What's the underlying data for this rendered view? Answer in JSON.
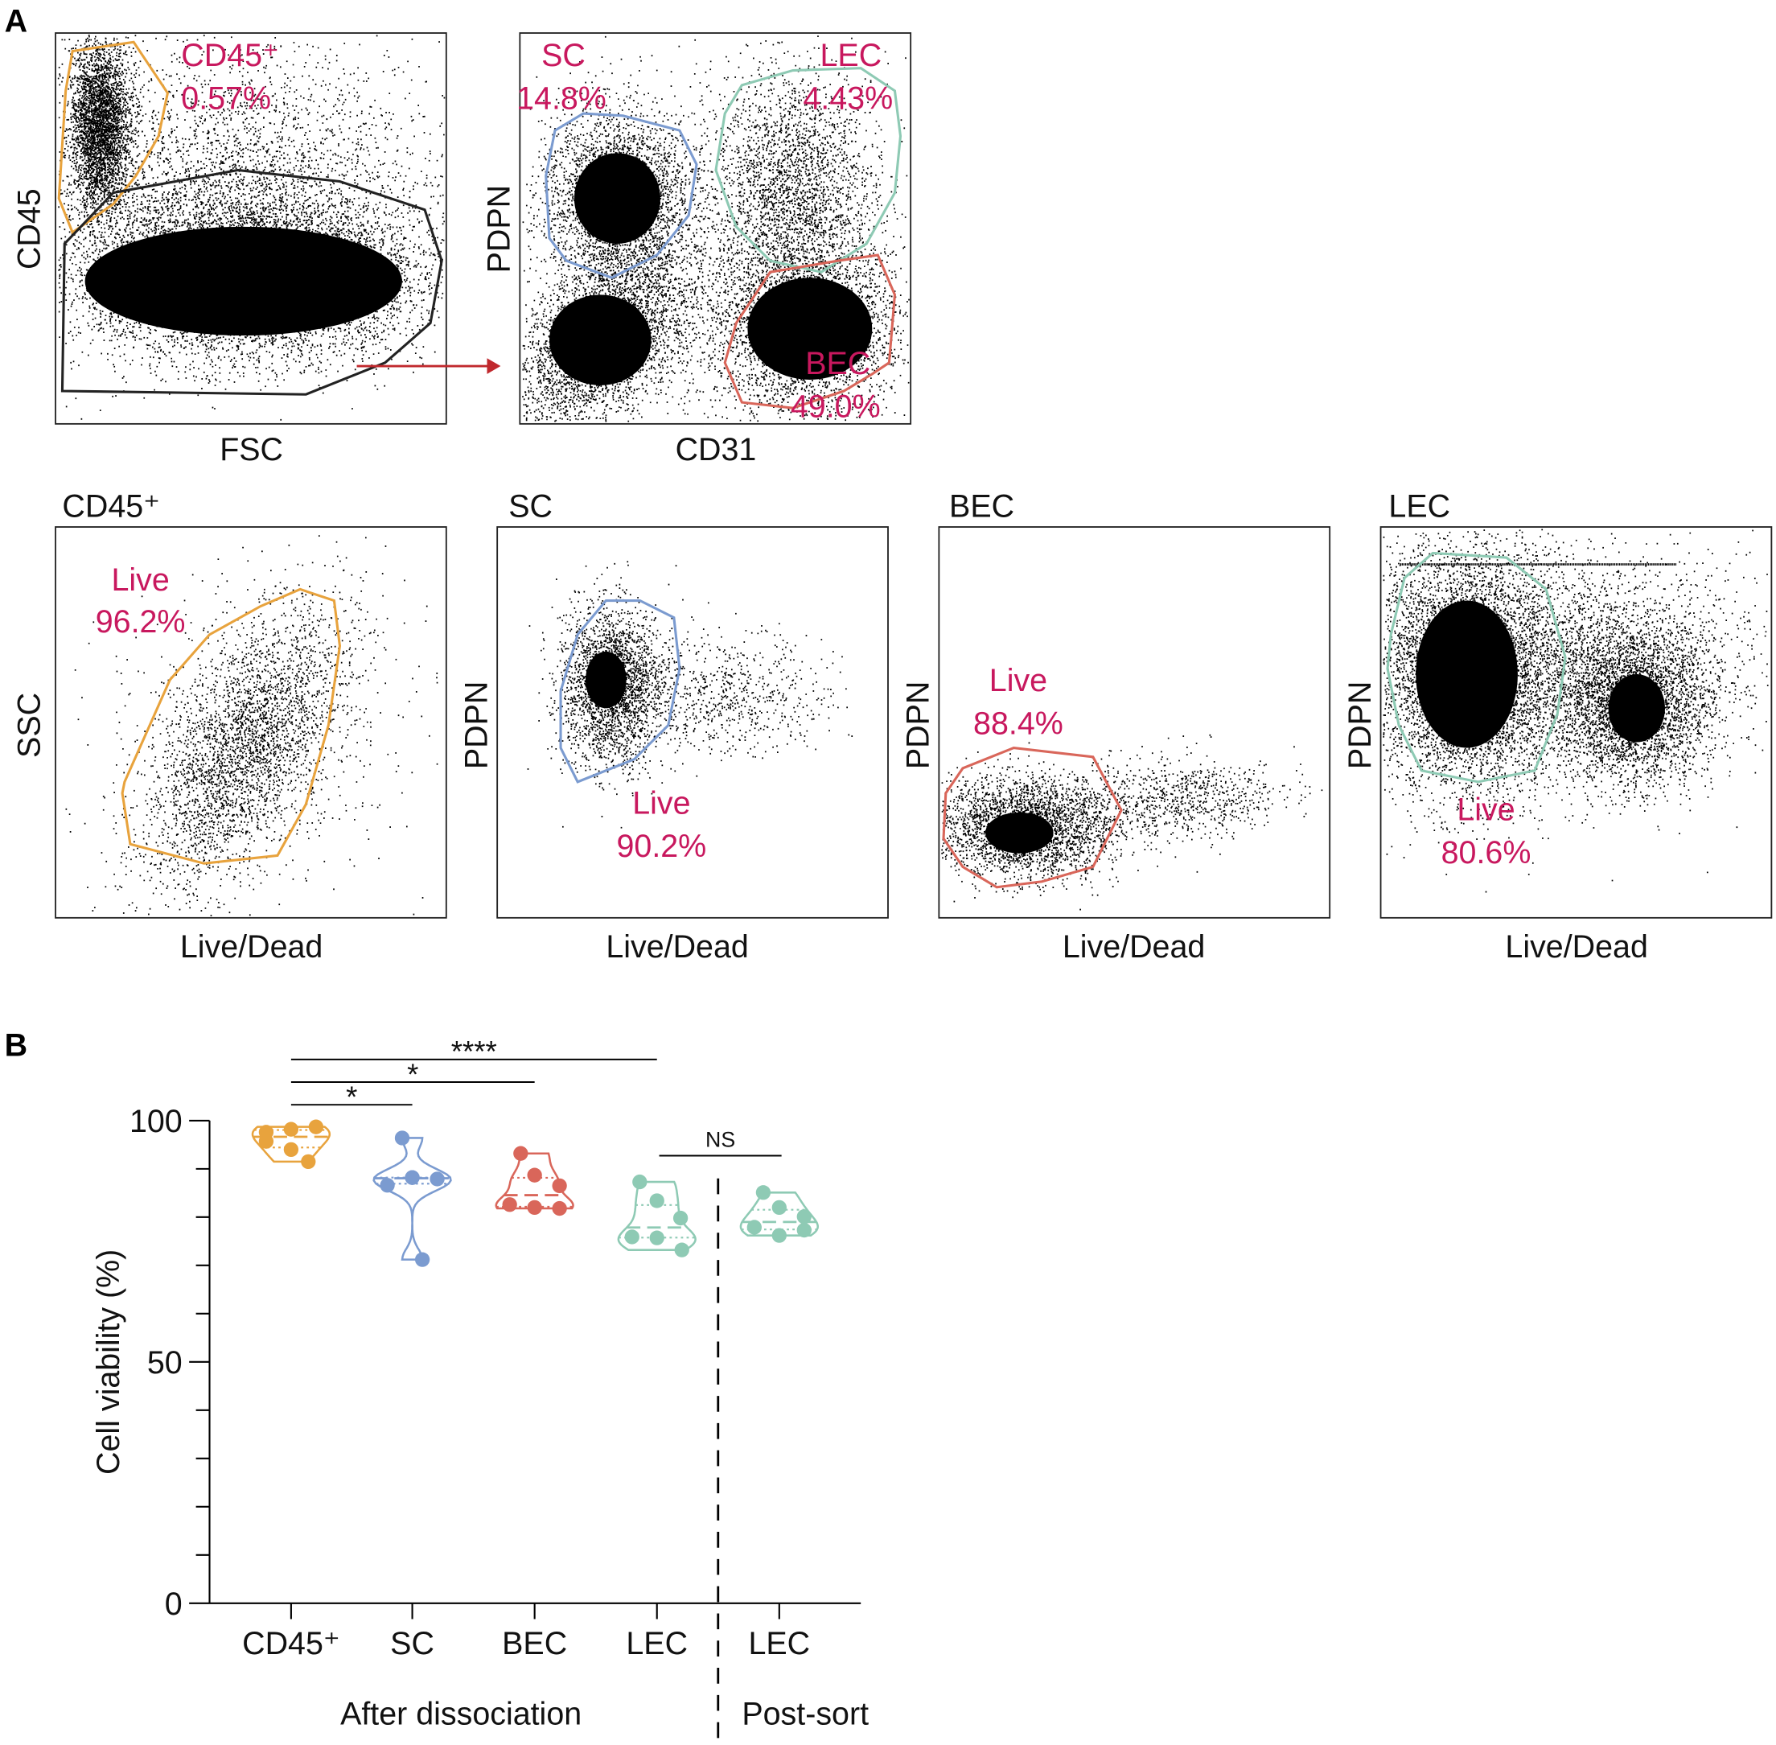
{
  "panel_labels": {
    "a": "A",
    "b": "B"
  },
  "colors": {
    "cd45": "#e8a33d",
    "sc": "#7b9bd0",
    "bec": "#d9665a",
    "lec": "#8ecab4",
    "gate_text": "#c8185e",
    "arrow": "#c0282d"
  },
  "top_row": [
    {
      "xlabel": "FSC",
      "ylabel": "CD45",
      "gates": [
        {
          "name": "CD45⁺",
          "pct": "0.57%"
        }
      ]
    },
    {
      "xlabel": "CD31",
      "ylabel": "PDPN",
      "gates": [
        {
          "name": "SC",
          "pct": "14.8%"
        },
        {
          "name": "LEC",
          "pct": "4.43%"
        },
        {
          "name": "BEC",
          "pct": "49.0%"
        }
      ]
    }
  ],
  "bottom_row": [
    {
      "title": "CD45⁺",
      "xlabel": "Live/Dead",
      "ylabel": "SSC",
      "gate": "Live",
      "pct": "96.2%"
    },
    {
      "title": "SC",
      "xlabel": "Live/Dead",
      "ylabel": "PDPN",
      "gate": "Live",
      "pct": "90.2%"
    },
    {
      "title": "BEC",
      "xlabel": "Live/Dead",
      "ylabel": "PDPN",
      "gate": "Live",
      "pct": "88.4%"
    },
    {
      "title": "LEC",
      "xlabel": "Live/Dead",
      "ylabel": "PDPN",
      "gate": "Live",
      "pct": "80.6%"
    }
  ],
  "chart_data": {
    "type": "violin",
    "ylabel": "Cell viability (%)",
    "ylim": [
      0,
      100
    ],
    "yticks": [
      0,
      50,
      100
    ],
    "categories": [
      "CD45⁺",
      "SC",
      "BEC",
      "LEC",
      "LEC"
    ],
    "groups": [
      {
        "label": "After dissociation",
        "categories": [
          0,
          1,
          2,
          3
        ]
      },
      {
        "label": "Post-sort",
        "categories": [
          4
        ]
      }
    ],
    "series": [
      {
        "category": "CD45⁺",
        "color": "#e8a33d",
        "values": [
          97.6,
          98.2,
          98.7,
          95.7,
          94.0,
          91.5
        ]
      },
      {
        "category": "SC",
        "color": "#7b9bd0",
        "values": [
          96.4,
          88.2,
          87.9,
          86.6,
          88.2,
          71.2
        ]
      },
      {
        "category": "BEC",
        "color": "#d9665a",
        "values": [
          93.2,
          88.7,
          86.5,
          82.6,
          82.0,
          81.8
        ]
      },
      {
        "category": "LEC",
        "color": "#8ecab4",
        "values": [
          87.3,
          83.4,
          79.8,
          75.9,
          75.7,
          73.2
        ]
      },
      {
        "category": "LEC",
        "color": "#8ecab4",
        "values": [
          85.1,
          82.0,
          80.1,
          77.9,
          76.2,
          77.3
        ]
      }
    ],
    "significance": [
      {
        "from": 0,
        "to": 3,
        "label": "****"
      },
      {
        "from": 0,
        "to": 2,
        "label": "*"
      },
      {
        "from": 0,
        "to": 1,
        "label": "*"
      },
      {
        "from": 3,
        "to": 4,
        "label": "NS"
      }
    ]
  }
}
